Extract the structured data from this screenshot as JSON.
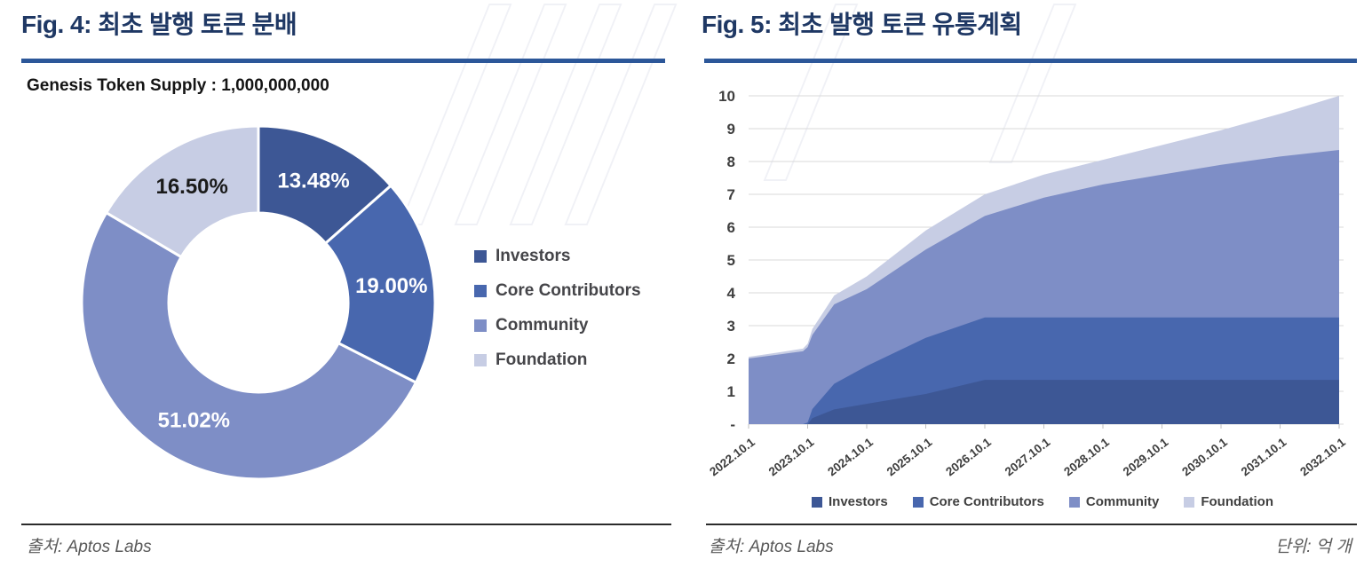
{
  "fig4": {
    "title": "Fig. 4: 최초 발행 토큰 분배",
    "supply": "Genesis Token Supply : 1,000,000,000",
    "source": "출처: Aptos Labs"
  },
  "fig5": {
    "title": "Fig. 5: 최초 발행 토큰 유통계획",
    "source": "출처: Aptos Labs",
    "unit": "단위: 억 개"
  },
  "palette": {
    "investors": "#3D5795",
    "core_contributors": "#4867AE",
    "community": "#7E8EC6",
    "foundation": "#C7CDE4",
    "title_navy": "#1F3864",
    "rule_blue": "#2C5799"
  },
  "chart_data": [
    {
      "type": "pie",
      "title": "Fig. 4: 최초 발행 토큰 분배",
      "subtitle": "Genesis Token Supply : 1,000,000,000",
      "labels": [
        "Investors",
        "Core Contributors",
        "Community",
        "Foundation"
      ],
      "values": [
        13.48,
        19.0,
        51.02,
        16.5
      ],
      "value_labels": [
        "13.48%",
        "19.00%",
        "51.02%",
        "16.50%"
      ],
      "colors": [
        "#3D5795",
        "#4867AE",
        "#7E8EC6",
        "#C7CDE4"
      ],
      "label_text_colors": [
        "#ffffff",
        "#ffffff",
        "#ffffff",
        "#1a1a1a"
      ],
      "donut_hole": 0.5,
      "start_angle_deg": 0,
      "direction": "clockwise",
      "legend_position": "right",
      "source": "출처: Aptos Labs"
    },
    {
      "type": "area",
      "stacked": true,
      "title": "Fig. 5: 최초 발행 토큰 유통계획",
      "unit_label": "단위: 억 개",
      "source": "출처: Aptos Labs",
      "x_unit_years_after_launch": true,
      "x": [
        0,
        0.5,
        0.92,
        1.0,
        1.08,
        1.45,
        2,
        3,
        4,
        5,
        6,
        7,
        8,
        9,
        10
      ],
      "series": [
        {
          "name": "Investors",
          "color": "#3D5795",
          "values": [
            0,
            0,
            0,
            0,
            0.18,
            0.45,
            0.62,
            0.92,
            1.35,
            1.35,
            1.35,
            1.35,
            1.35,
            1.35,
            1.348
          ]
        },
        {
          "name": "Core Contributors",
          "color": "#4867AE",
          "values": [
            0,
            0,
            0,
            0.05,
            0.28,
            0.78,
            1.15,
            1.71,
            1.9,
            1.9,
            1.9,
            1.9,
            1.9,
            1.9,
            1.9
          ]
        },
        {
          "name": "Community",
          "color": "#7E8EC6",
          "values": [
            2.0,
            2.12,
            2.22,
            2.3,
            2.26,
            2.42,
            2.34,
            2.69,
            3.09,
            3.65,
            4.05,
            4.35,
            4.65,
            4.9,
            5.102
          ]
        },
        {
          "name": "Foundation",
          "color": "#C7CDE4",
          "values": [
            0.05,
            0.06,
            0.08,
            0.1,
            0.18,
            0.27,
            0.39,
            0.58,
            0.66,
            0.7,
            0.75,
            0.9,
            1.05,
            1.3,
            1.65
          ]
        }
      ],
      "x_tick_positions": [
        0,
        1,
        2,
        3,
        4,
        5,
        6,
        7,
        8,
        9,
        10
      ],
      "x_tick_labels": [
        "2022.10.1",
        "2023.10.1",
        "2024.10.1",
        "2025.10.1",
        "2026.10.1",
        "2027.10.1",
        "2028.10.1",
        "2029.10.1",
        "2030.10.1",
        "2031.10.1",
        "2032.10.1"
      ],
      "y_tick_labels": [
        "-",
        "1",
        "2",
        "3",
        "4",
        "5",
        "6",
        "7",
        "8",
        "9",
        "10"
      ],
      "ylim": [
        0,
        10
      ],
      "grid": true,
      "legend_position": "bottom"
    }
  ]
}
